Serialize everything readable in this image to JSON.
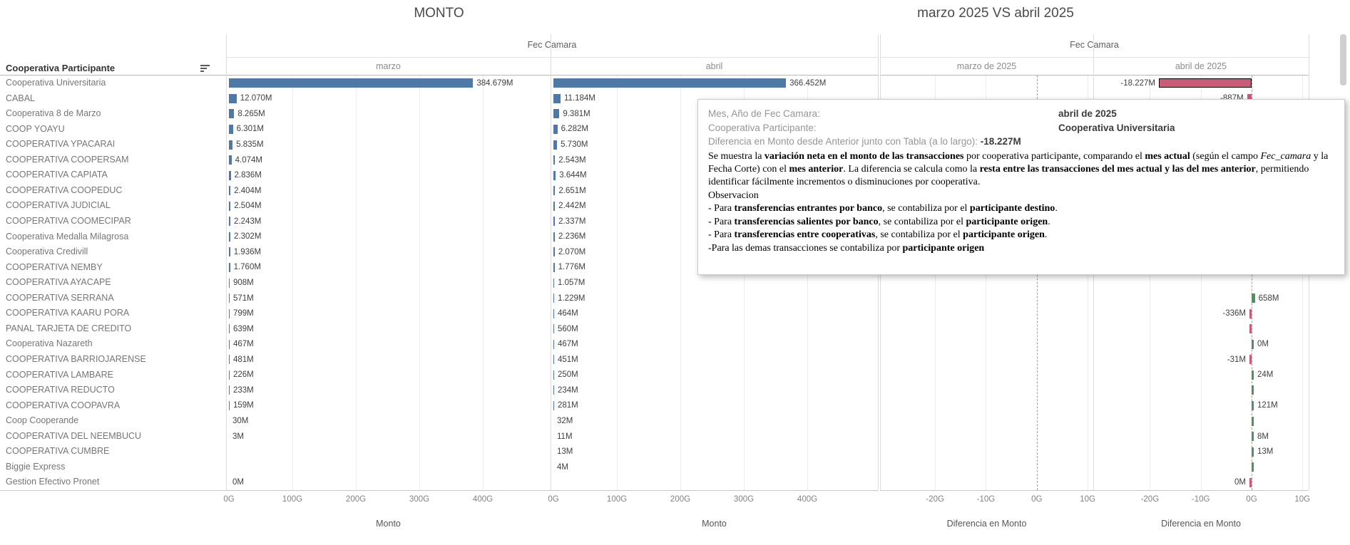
{
  "left_chart": {
    "title": "MONTO",
    "column_field": "Fec Camara",
    "row_field": "Cooperativa Participante",
    "columns": [
      "marzo",
      "abril"
    ],
    "x_axis_title": "Monto",
    "x_ticks": [
      "0G",
      "100G",
      "200G",
      "300G",
      "400G"
    ]
  },
  "right_chart": {
    "title": "marzo 2025 VS abril 2025",
    "column_field": "Fec Camara",
    "columns": [
      "marzo de 2025",
      "abril de 2025"
    ],
    "x_axis_title": "Diferencia en Monto",
    "x_ticks": [
      "-20G",
      "-10G",
      "0G",
      "10G"
    ]
  },
  "rows": [
    {
      "name": "Cooperativa Universitaria",
      "marzo_label": "384.679M",
      "marzo": 384.679,
      "abril_label": "366.452M",
      "abril": 366.452,
      "diff": {
        "label": "-18.227M",
        "value": -18.227,
        "sign": "negative",
        "selected": true
      }
    },
    {
      "name": "CABAL",
      "marzo_label": "12.070M",
      "marzo": 12.07,
      "abril_label": "11.184M",
      "abril": 11.184,
      "diff": {
        "label": "-887M",
        "value": -0.887,
        "sign": "negative"
      }
    },
    {
      "name": "Cooperativa 8 de Marzo",
      "marzo_label": "8.265M",
      "marzo": 8.265,
      "abril_label": "9.381M",
      "abril": 9.381,
      "diff": null
    },
    {
      "name": "COOP YOAYU",
      "marzo_label": "6.301M",
      "marzo": 6.301,
      "abril_label": "6.282M",
      "abril": 6.282,
      "diff": null
    },
    {
      "name": "COOPERATIVA YPACARAI",
      "marzo_label": "5.835M",
      "marzo": 5.835,
      "abril_label": "5.730M",
      "abril": 5.73,
      "diff": null
    },
    {
      "name": "COOPERATIVA COOPERSAM",
      "marzo_label": "4.074M",
      "marzo": 4.074,
      "abril_label": "2.543M",
      "abril": 2.543,
      "diff": null
    },
    {
      "name": "COOPERATIVA CAPIATA",
      "marzo_label": "2.836M",
      "marzo": 2.836,
      "abril_label": "3.644M",
      "abril": 3.644,
      "diff": null
    },
    {
      "name": "COOPERATIVA COOPEDUC",
      "marzo_label": "2.404M",
      "marzo": 2.404,
      "abril_label": "2.651M",
      "abril": 2.651,
      "diff": null
    },
    {
      "name": "COOPERATIVA JUDICIAL",
      "marzo_label": "2.504M",
      "marzo": 2.504,
      "abril_label": "2.442M",
      "abril": 2.442,
      "diff": null
    },
    {
      "name": "COOPERATIVA COOMECIPAR",
      "marzo_label": "2.243M",
      "marzo": 2.243,
      "abril_label": "2.337M",
      "abril": 2.337,
      "diff": null
    },
    {
      "name": "Cooperativa Medalla Milagrosa",
      "marzo_label": "2.302M",
      "marzo": 2.302,
      "abril_label": "2.236M",
      "abril": 2.236,
      "diff": null
    },
    {
      "name": "Cooperativa Credivill",
      "marzo_label": "1.936M",
      "marzo": 1.936,
      "abril_label": "2.070M",
      "abril": 2.07,
      "diff": null
    },
    {
      "name": "COOPERATIVA NEMBY",
      "marzo_label": "1.760M",
      "marzo": 1.76,
      "abril_label": "1.776M",
      "abril": 1.776,
      "diff": null
    },
    {
      "name": "COOPERATIVA AYACAPE",
      "marzo_label": "908M",
      "marzo": 0.908,
      "abril_label": "1.057M",
      "abril": 1.057,
      "diff": null
    },
    {
      "name": "COOPERATIVA SERRANA",
      "marzo_label": "571M",
      "marzo": 0.571,
      "abril_label": "1.229M",
      "abril": 1.229,
      "diff": {
        "label": "658M",
        "value": 0.658,
        "sign": "positive"
      }
    },
    {
      "name": "COOPERATIVA KAARU PORA",
      "marzo_label": "799M",
      "marzo": 0.799,
      "abril_label": "464M",
      "abril": 0.464,
      "diff": {
        "label": "-336M",
        "value": -0.336,
        "sign": "negative"
      }
    },
    {
      "name": "PANAL TARJETA DE CREDITO",
      "marzo_label": "639M",
      "marzo": 0.639,
      "abril_label": "560M",
      "abril": 0.56,
      "diff": {
        "label": "",
        "value": -0.079,
        "sign": "negative"
      }
    },
    {
      "name": "Cooperativa Nazareth",
      "marzo_label": "467M",
      "marzo": 0.467,
      "abril_label": "467M",
      "abril": 0.467,
      "diff": {
        "label": "0M",
        "value": 0,
        "sign": "positive"
      }
    },
    {
      "name": "COOPERATIVA BARRIOJARENSE",
      "marzo_label": "481M",
      "marzo": 0.481,
      "abril_label": "451M",
      "abril": 0.451,
      "diff": {
        "label": "-31M",
        "value": -0.031,
        "sign": "negative"
      }
    },
    {
      "name": "COOPERATIVA LAMBARE",
      "marzo_label": "226M",
      "marzo": 0.226,
      "abril_label": "250M",
      "abril": 0.25,
      "diff": {
        "label": "24M",
        "value": 0.024,
        "sign": "positive"
      }
    },
    {
      "name": "COOPERATIVA REDUCTO",
      "marzo_label": "233M",
      "marzo": 0.233,
      "abril_label": "234M",
      "abril": 0.234,
      "diff": {
        "label": "",
        "value": 0.001,
        "sign": "positive"
      }
    },
    {
      "name": "COOPERATIVA COOPAVRA",
      "marzo_label": "159M",
      "marzo": 0.159,
      "abril_label": "281M",
      "abril": 0.281,
      "diff": {
        "label": "121M",
        "value": 0.121,
        "sign": "positive"
      }
    },
    {
      "name": "Coop Cooperande",
      "marzo_label": "30M",
      "marzo": 0.03,
      "abril_label": "32M",
      "abril": 0.032,
      "diff": {
        "label": "",
        "value": 0.002,
        "sign": "positive"
      }
    },
    {
      "name": "COOPERATIVA DEL NEEMBUCU",
      "marzo_label": "3M",
      "marzo": 0.003,
      "abril_label": "11M",
      "abril": 0.011,
      "diff": {
        "label": "8M",
        "value": 0.008,
        "sign": "positive"
      }
    },
    {
      "name": "COOPERATIVA CUMBRE",
      "marzo_label": null,
      "marzo": null,
      "abril_label": "13M",
      "abril": 0.013,
      "diff": {
        "label": "13M",
        "value": 0.013,
        "sign": "positive"
      }
    },
    {
      "name": "Biggie Express",
      "marzo_label": null,
      "marzo": null,
      "abril_label": "4M",
      "abril": 0.004,
      "diff": {
        "label": "",
        "value": 0.004,
        "sign": "positive"
      }
    },
    {
      "name": "Gestion Efectivo Pronet",
      "marzo_label": "0M",
      "marzo": 0,
      "abril_label": null,
      "abril": null,
      "diff": {
        "label": "0M",
        "value": 0,
        "sign": "negative"
      }
    }
  ],
  "tooltip": {
    "row1_label": "Mes, Año de Fec Camara:",
    "row1_value": "abril de 2025",
    "row2_label": "Cooperativa Participante:",
    "row2_value": "Cooperativa Universitaria",
    "row3_label": "Diferencia en Monto desde Anterior junto con Tabla (a lo largo): ",
    "row3_value": "-18.227M",
    "paragraphs": [
      [
        {
          "t": "Se muestra la "
        },
        {
          "t": "variación neta en el monto de las transacciones",
          "b": true
        },
        {
          "t": " por cooperativa participante, comparando el "
        },
        {
          "t": "mes actual",
          "b": true
        },
        {
          "t": " (según el campo "
        },
        {
          "t": "Fec_camara",
          "i": true
        },
        {
          "t": " y la Fecha Corte) con el "
        },
        {
          "t": "mes anterior",
          "b": true
        },
        {
          "t": ". La diferencia se calcula como la "
        },
        {
          "t": "resta entre las transacciones del mes actual y las del mes anterior",
          "b": true
        },
        {
          "t": ", permitiendo identificar fácilmente incrementos o disminuciones por cooperativa."
        }
      ],
      [
        {
          "t": "Observacion"
        }
      ],
      [
        {
          "t": "- Para "
        },
        {
          "t": "transferencias entrantes por banco",
          "b": true
        },
        {
          "t": ",  se contabiliza por el "
        },
        {
          "t": "participante destino",
          "b": true
        },
        {
          "t": "."
        }
      ],
      [
        {
          "t": "- Para "
        },
        {
          "t": "transferencias salientes por banco",
          "b": true
        },
        {
          "t": ", se contabiliza por el "
        },
        {
          "t": "participante origen",
          "b": true
        },
        {
          "t": "."
        }
      ],
      [
        {
          "t": "- Para "
        },
        {
          "t": "transferencias entre cooperativas",
          "b": true
        },
        {
          "t": ",  se contabiliza por el "
        },
        {
          "t": "participante origen",
          "b": true
        },
        {
          "t": "."
        }
      ],
      [
        {
          "t": "-Para las demas transacciones se contabiliza por "
        },
        {
          "t": "participante origen",
          "b": true
        }
      ]
    ]
  },
  "colors": {
    "bar_blue": "#4e79a7",
    "diff_negative": "#cb5b76",
    "diff_positive": "#4f9160",
    "selected_border": "#000000"
  },
  "chart_data": [
    {
      "type": "bar",
      "orientation": "horizontal",
      "title": "MONTO",
      "column_field": "Fec Camara",
      "xlabel": "Monto",
      "x_ticks": [
        "0G",
        "100G",
        "200G",
        "300G",
        "400G"
      ],
      "xlim_G": [
        0,
        505
      ],
      "unit_note": "bar labels use Spanish thousands separator: 384.679M = 384,679 million = 384.679G",
      "categories": [
        "Cooperativa Universitaria",
        "CABAL",
        "Cooperativa 8 de Marzo",
        "COOP YOAYU",
        "COOPERATIVA YPACARAI",
        "COOPERATIVA COOPERSAM",
        "COOPERATIVA CAPIATA",
        "COOPERATIVA COOPEDUC",
        "COOPERATIVA JUDICIAL",
        "COOPERATIVA COOMECIPAR",
        "Cooperativa Medalla Milagrosa",
        "Cooperativa Credivill",
        "COOPERATIVA NEMBY",
        "COOPERATIVA AYACAPE",
        "COOPERATIVA SERRANA",
        "COOPERATIVA KAARU PORA",
        "PANAL TARJETA DE CREDITO",
        "Cooperativa Nazareth",
        "COOPERATIVA BARRIOJARENSE",
        "COOPERATIVA LAMBARE",
        "COOPERATIVA REDUCTO",
        "COOPERATIVA COOPAVRA",
        "Coop Cooperande",
        "COOPERATIVA DEL NEEMBUCU",
        "COOPERATIVA CUMBRE",
        "Biggie Express",
        "Gestion Efectivo Pronet"
      ],
      "series": [
        {
          "name": "marzo",
          "values_G": [
            384.679,
            12.07,
            8.265,
            6.301,
            5.835,
            4.074,
            2.836,
            2.404,
            2.504,
            2.243,
            2.302,
            1.936,
            1.76,
            0.908,
            0.571,
            0.799,
            0.639,
            0.467,
            0.481,
            0.226,
            0.233,
            0.159,
            0.03,
            0.003,
            null,
            null,
            0
          ]
        },
        {
          "name": "abril",
          "values_G": [
            366.452,
            11.184,
            9.381,
            6.282,
            5.73,
            2.543,
            3.644,
            2.651,
            2.442,
            2.337,
            2.236,
            2.07,
            1.776,
            1.057,
            1.229,
            0.464,
            0.56,
            0.467,
            0.451,
            0.25,
            0.234,
            0.281,
            0.032,
            0.011,
            0.013,
            0.004,
            null
          ]
        }
      ]
    },
    {
      "type": "bar",
      "orientation": "horizontal",
      "title": "marzo 2025 VS abril 2025",
      "column_field": "Fec Camara",
      "xlabel": "Diferencia en Monto",
      "x_ticks": [
        "-20G",
        "-10G",
        "0G",
        "10G"
      ],
      "xlim_G": [
        -31,
        11
      ],
      "note": "marzo de 2025 pane shows no visible marks; rows 3-14 of abril pane are hidden behind the tooltip",
      "categories": [
        "Cooperativa Universitaria",
        "CABAL",
        "Cooperativa 8 de Marzo",
        "COOP YOAYU",
        "COOPERATIVA YPACARAI",
        "COOPERATIVA COOPERSAM",
        "COOPERATIVA CAPIATA",
        "COOPERATIVA COOPEDUC",
        "COOPERATIVA JUDICIAL",
        "COOPERATIVA COOMECIPAR",
        "Cooperativa Medalla Milagrosa",
        "Cooperativa Credivill",
        "COOPERATIVA NEMBY",
        "COOPERATIVA AYACAPE",
        "COOPERATIVA SERRANA",
        "COOPERATIVA KAARU PORA",
        "PANAL TARJETA DE CREDITO",
        "Cooperativa Nazareth",
        "COOPERATIVA BARRIOJARENSE",
        "COOPERATIVA LAMBARE",
        "COOPERATIVA REDUCTO",
        "COOPERATIVA COOPAVRA",
        "Coop Cooperande",
        "COOPERATIVA DEL NEEMBUCU",
        "COOPERATIVA CUMBRE",
        "Biggie Express",
        "Gestion Efectivo Pronet"
      ],
      "series": [
        {
          "name": "marzo de 2025",
          "values_G": [
            null,
            null,
            null,
            null,
            null,
            null,
            null,
            null,
            null,
            null,
            null,
            null,
            null,
            null,
            null,
            null,
            null,
            null,
            null,
            null,
            null,
            null,
            null,
            null,
            null,
            null,
            null
          ]
        },
        {
          "name": "abril de 2025",
          "values_G": [
            -18.227,
            -0.887,
            null,
            null,
            null,
            null,
            null,
            null,
            null,
            null,
            null,
            null,
            null,
            null,
            0.658,
            -0.336,
            -0.079,
            0,
            -0.031,
            0.024,
            0.001,
            0.121,
            0.002,
            0.008,
            0.013,
            0.004,
            0
          ]
        }
      ]
    }
  ]
}
